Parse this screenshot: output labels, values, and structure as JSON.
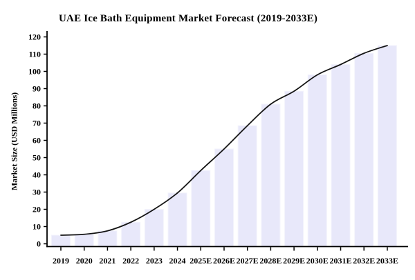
{
  "figure": {
    "background": "#ffffff"
  },
  "chart_data": {
    "type": "bar",
    "line_overlay": true,
    "title": "UAE Ice Bath Equipment Market Forecast (2019-2033E)",
    "xlabel": "",
    "ylabel": "Market Size (USD Millions)",
    "categories": [
      "2019",
      "2020",
      "2021",
      "2022",
      "2023",
      "2024",
      "2025E",
      "2026E",
      "2027E",
      "2028E",
      "2029E",
      "2030E",
      "2031E",
      "2032E",
      "2033E"
    ],
    "values": [
      5,
      5.5,
      7.5,
      12.5,
      20,
      29.5,
      42.5,
      55,
      68.5,
      81,
      88.5,
      98,
      104,
      110.5,
      115
    ],
    "ylim": [
      0,
      120
    ],
    "ytick_step": 10,
    "yticks": [
      0,
      10,
      20,
      30,
      40,
      50,
      60,
      70,
      80,
      90,
      100,
      110,
      120
    ],
    "grid": false,
    "legend": "none",
    "bar_color": "#e8e8fa",
    "bar_edge_color": "#f3f3fc",
    "line_color": "#141414",
    "axis_color": "#000000",
    "text_color": "#000000"
  }
}
